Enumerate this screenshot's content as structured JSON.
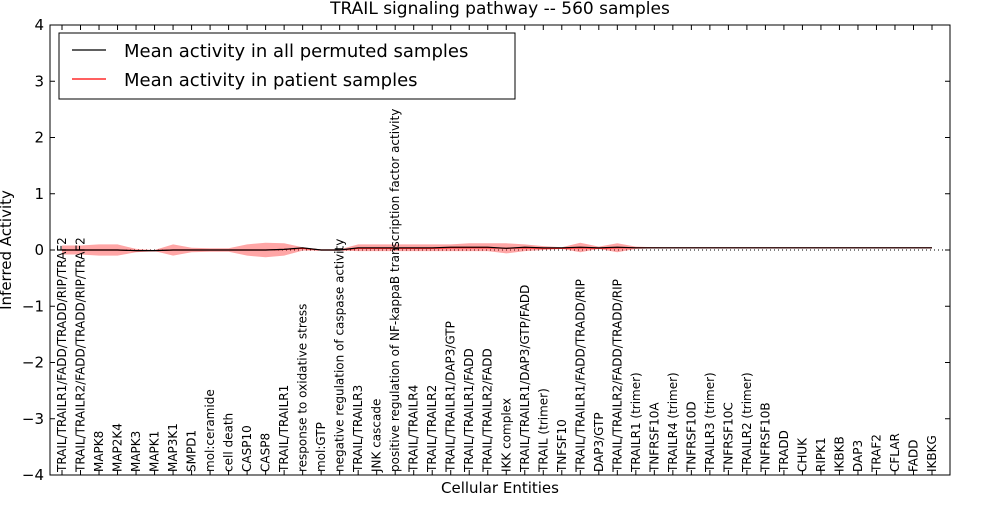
{
  "chart_data": {
    "type": "line",
    "title": "TRAIL signaling pathway -- 560 samples",
    "xlabel": "Cellular Entities",
    "ylabel": "Inferred Activity",
    "ylim": [
      -4,
      4
    ],
    "yticks": [
      "−4",
      "−3",
      "−2",
      "−1",
      "0",
      "1",
      "2",
      "3",
      "4"
    ],
    "legend_position": "top-left",
    "categories": [
      "TRAIL/TRAILR1/FADD/TRADD/RIP/TRAF2",
      "TRAIL/TRAILR2/FADD/TRADD/RIP/TRAF2",
      "MAPK8",
      "MAP2K4",
      "MAPK3",
      "MAPK1",
      "MAP3K1",
      "SMPD1",
      "mol:ceramide",
      "cell death",
      "CASP10",
      "CASP8",
      "TRAIL/TRAILR1",
      "response to oxidative stress",
      "mol:GTP",
      "negative regulation of caspase activity",
      "TRAIL/TRAILR3",
      "JNK cascade",
      "positive regulation of NF-kappaB transcription factor activity",
      "TRAIL/TRAILR4",
      "TRAIL/TRAILR2",
      "TRAIL/TRAILR1/DAP3/GTP",
      "TRAIL/TRAILR1/FADD",
      "TRAIL/TRAILR2/FADD",
      "IKK complex",
      "TRAIL/TRAILR1/DAP3/GTP/FADD",
      "TRAIL (trimer)",
      "TNFSF10",
      "TRAIL/TRAILR1/FADD/TRADD/RIP",
      "DAP3/GTP",
      "TRAIL/TRAILR2/FADD/TRADD/RIP",
      "TRAILR1 (trimer)",
      "TNFRSF10A",
      "TRAILR4 (trimer)",
      "TNFRSF10D",
      "TRAILR3 (trimer)",
      "TNFRSF10C",
      "TRAILR2 (trimer)",
      "TNFRSF10B",
      "TRADD",
      "CHUK",
      "RIPK1",
      "IKBKB",
      "DAP3",
      "TRAF2",
      "CFLAR",
      "FADD",
      "IKBKG"
    ],
    "series": [
      {
        "name": "Mean activity in all permuted samples",
        "color": "#000000",
        "values": [
          0.0,
          0.0,
          0.0,
          0.0,
          -0.01,
          -0.01,
          0.0,
          0.0,
          0.0,
          0.0,
          0.0,
          0.0,
          0.01,
          0.04,
          0.0,
          0.0,
          0.04,
          0.04,
          0.04,
          0.04,
          0.04,
          0.05,
          0.05,
          0.05,
          0.03,
          0.05,
          0.04,
          0.04,
          0.05,
          0.04,
          0.05,
          0.04,
          0.04,
          0.04,
          0.04,
          0.04,
          0.04,
          0.04,
          0.04,
          0.04,
          0.04,
          0.04,
          0.04,
          0.04,
          0.04,
          0.04,
          0.04,
          0.04
        ]
      },
      {
        "name": "Mean activity in patient samples",
        "color": "#ff0000",
        "values": [
          0.0,
          0.0,
          0.0,
          0.0,
          -0.01,
          -0.01,
          0.0,
          0.0,
          0.0,
          0.0,
          0.0,
          0.0,
          0.01,
          0.03,
          0.0,
          0.0,
          0.03,
          0.03,
          0.03,
          0.03,
          0.03,
          0.04,
          0.04,
          0.04,
          0.03,
          0.04,
          0.03,
          0.03,
          0.04,
          0.03,
          0.04,
          0.04,
          0.04,
          0.04,
          0.04,
          0.04,
          0.04,
          0.04,
          0.04,
          0.04,
          0.04,
          0.04,
          0.04,
          0.04,
          0.04,
          0.04,
          0.04,
          0.04
        ]
      }
    ],
    "band": {
      "color": "#ff0000",
      "upper": [
        0.08,
        0.08,
        0.1,
        0.1,
        0.02,
        0.0,
        0.1,
        0.04,
        0.03,
        0.03,
        0.1,
        0.13,
        0.12,
        0.05,
        0.01,
        0.01,
        0.1,
        0.1,
        0.1,
        0.1,
        0.1,
        0.1,
        0.12,
        0.12,
        0.12,
        0.1,
        0.07,
        0.05,
        0.13,
        0.06,
        0.12,
        0.06,
        0.05,
        0.04,
        0.04,
        0.04,
        0.04,
        0.04,
        0.04,
        0.04,
        0.04,
        0.04,
        0.04,
        0.04,
        0.04,
        0.04,
        0.04,
        0.04
      ],
      "lower": [
        -0.08,
        -0.08,
        -0.1,
        -0.1,
        -0.04,
        -0.02,
        -0.1,
        -0.04,
        -0.03,
        -0.03,
        -0.1,
        -0.13,
        -0.1,
        -0.01,
        -0.01,
        -0.01,
        -0.02,
        -0.02,
        -0.02,
        -0.02,
        -0.02,
        -0.02,
        -0.02,
        -0.02,
        -0.06,
        -0.02,
        0.0,
        0.02,
        -0.04,
        0.02,
        -0.04,
        0.02,
        0.03,
        0.04,
        0.04,
        0.04,
        0.04,
        0.04,
        0.04,
        0.04,
        0.04,
        0.04,
        0.04,
        0.04,
        0.04,
        0.04,
        0.04,
        0.04
      ]
    }
  }
}
